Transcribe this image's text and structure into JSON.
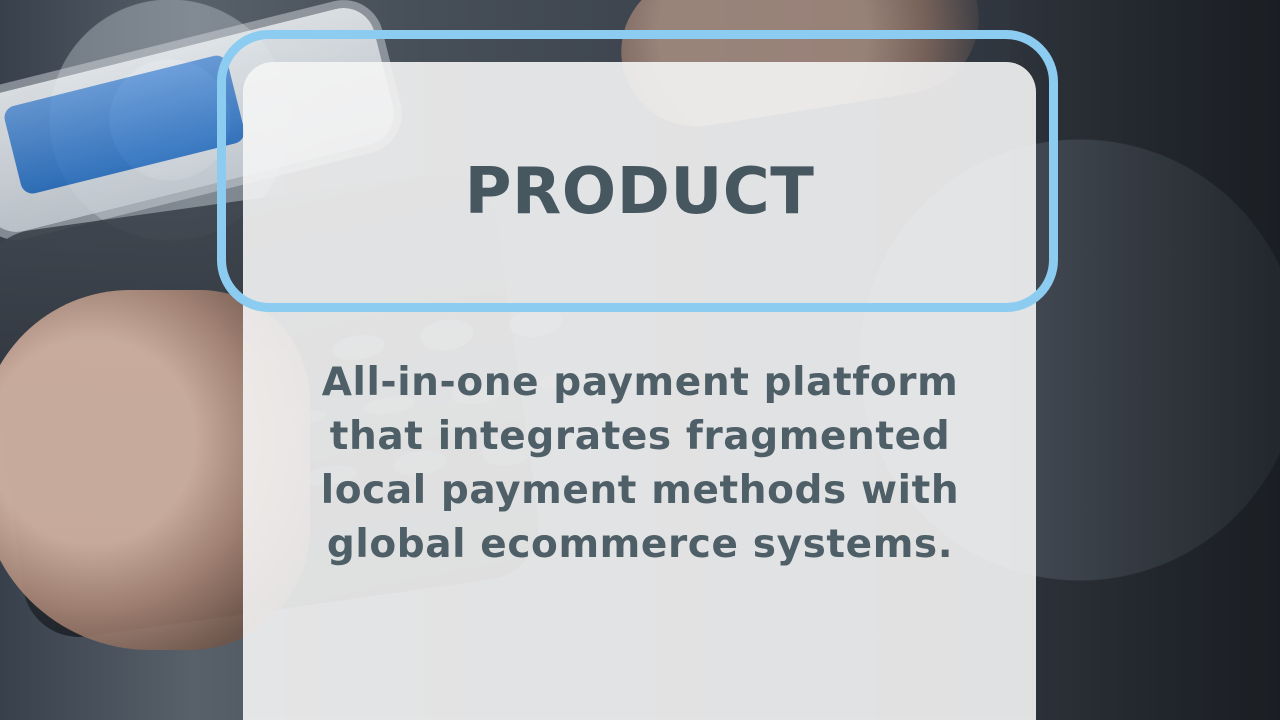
{
  "slide": {
    "title": "PRODUCT",
    "description": "All-in-one payment platform that integrates fragmented local payment methods with global ecommerce systems."
  },
  "colors": {
    "panel": "#f4f4f4",
    "frame": "#8cccf0",
    "title_text": "#465760",
    "body_text": "#4f5f67"
  }
}
